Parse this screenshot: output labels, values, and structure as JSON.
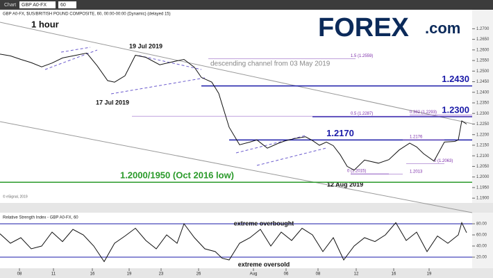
{
  "toolbar": {
    "tab": "Chart",
    "symbol": "GBP A0-FX",
    "interval": "60"
  },
  "logo": {
    "main": "FOREX",
    "suffix": ".com"
  },
  "chart_data": [
    {
      "type": "line",
      "header": "GBP A0-FX, $US/BRITISH POUND COMPOSITE, 60, 00:00-00:00 (Dynamic) (delayed 15)",
      "title": "1 hour",
      "color": "#111111",
      "x": [
        0,
        15,
        30,
        45,
        60,
        75,
        90,
        105,
        125,
        140,
        155,
        165,
        180,
        195,
        210,
        230,
        250,
        265,
        280,
        290,
        305,
        315,
        322,
        330,
        345,
        360,
        370,
        385,
        400,
        410,
        425,
        440,
        450,
        460,
        470,
        480,
        490,
        500,
        510,
        525,
        545,
        560,
        575,
        590,
        600,
        610,
        625,
        640,
        655,
        660,
        665,
        672
      ],
      "values": [
        1.258,
        1.2572,
        1.2555,
        1.254,
        1.252,
        1.2538,
        1.2562,
        1.2572,
        1.2585,
        1.2525,
        1.2455,
        1.2448,
        1.2478,
        1.2575,
        1.2565,
        1.253,
        1.2545,
        1.2555,
        1.2518,
        1.247,
        1.2448,
        1.2395,
        1.232,
        1.2235,
        1.2152,
        1.2165,
        1.2175,
        1.2136,
        1.2158,
        1.217,
        1.2182,
        1.219,
        1.2172,
        1.215,
        1.2165,
        1.2148,
        1.2105,
        1.205,
        1.2032,
        1.208,
        1.2065,
        1.2082,
        1.2128,
        1.216,
        1.2142,
        1.211,
        1.2075,
        1.2165,
        1.2168,
        1.2175,
        1.2265,
        1.225
      ],
      "xlim": [
        0,
        680
      ],
      "xticks": [
        {
          "value": 28,
          "label": "08"
        },
        {
          "value": 77,
          "label": "11"
        },
        {
          "value": 133,
          "label": "16"
        },
        {
          "value": 186,
          "label": "19"
        },
        {
          "value": 232,
          "label": "23"
        },
        {
          "value": 286,
          "label": "26"
        },
        {
          "value": 365,
          "label": "Aug"
        },
        {
          "value": 412,
          "label": "06"
        },
        {
          "value": 458,
          "label": "08"
        },
        {
          "value": 513,
          "label": "12"
        },
        {
          "value": 567,
          "label": "16"
        },
        {
          "value": 618,
          "label": "19"
        }
      ],
      "ylim": [
        1.1884,
        1.2757
      ],
      "yticks": [
        {
          "value": 1.19,
          "label": "1.1900"
        },
        {
          "value": 1.195,
          "label": "1.1950"
        },
        {
          "value": 1.2,
          "label": "1.2000"
        },
        {
          "value": 1.205,
          "label": "1.2050"
        },
        {
          "value": 1.21,
          "label": "1.2100"
        },
        {
          "value": 1.215,
          "label": "1.2150"
        },
        {
          "value": 1.22,
          "label": "1.2200"
        },
        {
          "value": 1.225,
          "label": "1.2250"
        },
        {
          "value": 1.23,
          "label": "1.2300"
        },
        {
          "value": 1.235,
          "label": "1.2350"
        },
        {
          "value": 1.24,
          "label": "1.2400"
        },
        {
          "value": 1.245,
          "label": "1.2450"
        },
        {
          "value": 1.25,
          "label": "1.2500"
        },
        {
          "value": 1.255,
          "label": "1.2550"
        },
        {
          "value": 1.26,
          "label": "1.2600"
        },
        {
          "value": 1.265,
          "label": "1.2650"
        },
        {
          "value": 1.27,
          "label": "1.2700"
        }
      ],
      "levels": [
        {
          "label": "1.2430",
          "value": 1.243,
          "color": "#1a1aa8"
        },
        {
          "label": "1.2300",
          "value": 1.2285,
          "color": "#1a1aa8"
        },
        {
          "label": "1.2170",
          "value": 1.2175,
          "color": "#1a1aa8"
        },
        {
          "label": "1.2000/1950 (Oct 2016 low)",
          "value": 1.1975,
          "color": "#2a9a2a"
        }
      ],
      "fib_levels": [
        {
          "label": "1.5 (1.2559)",
          "value": 1.2559
        },
        {
          "label": "0.5 (1.2287)",
          "value": 1.2287
        },
        {
          "label": "0.382 (1.2293)",
          "value": 1.2293
        },
        {
          "label": "1.2176",
          "value": 1.2176
        },
        {
          "label": "0 (1.2063)",
          "value": 1.2063
        },
        {
          "label": "0 (1.2015)",
          "value": 1.2015
        },
        {
          "label": "1.2013",
          "value": 1.2013
        }
      ],
      "annotations": [
        "19 Jul 2019",
        "17 Jul 2019",
        "descending channel from 03 May 2019",
        "12 Aug 2019",
        "© eSignal, 2019"
      ]
    },
    {
      "type": "line",
      "title": "Relative Strength Index - GBP A0-FX, 60",
      "color": "#111111",
      "x": [
        0,
        15,
        30,
        45,
        60,
        75,
        90,
        105,
        120,
        135,
        150,
        165,
        180,
        195,
        210,
        225,
        240,
        255,
        265,
        280,
        295,
        310,
        320,
        330,
        345,
        360,
        375,
        390,
        405,
        420,
        435,
        450,
        465,
        480,
        495,
        510,
        525,
        540,
        555,
        570,
        585,
        600,
        615,
        630,
        645,
        660,
        665,
        672
      ],
      "values": [
        62,
        45,
        55,
        35,
        40,
        65,
        48,
        70,
        60,
        40,
        12,
        45,
        58,
        72,
        50,
        35,
        60,
        45,
        80,
        55,
        35,
        30,
        18,
        15,
        45,
        55,
        70,
        40,
        65,
        50,
        72,
        60,
        30,
        55,
        15,
        40,
        55,
        48,
        60,
        82,
        50,
        65,
        30,
        58,
        45,
        60,
        82,
        64
      ],
      "ylim": [
        0,
        100
      ],
      "yticks": [
        {
          "value": 20,
          "label": "20.00"
        },
        {
          "value": 40,
          "label": "40.00"
        },
        {
          "value": 60,
          "label": "60.00"
        },
        {
          "value": 80,
          "label": "80.00"
        }
      ],
      "levels": [
        {
          "label": "extreme overbought",
          "value": 80,
          "color": "#1a1aa8"
        },
        {
          "label": "extreme oversold",
          "value": 20,
          "color": "#1a1aa8"
        }
      ]
    }
  ]
}
